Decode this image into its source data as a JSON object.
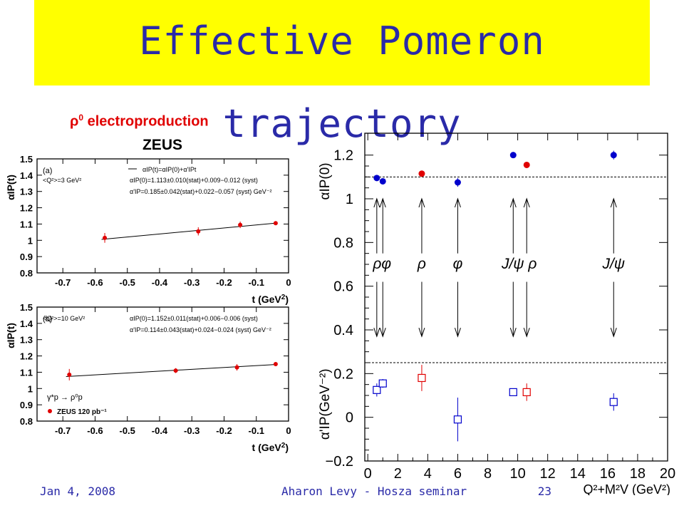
{
  "title": "Effective Pomeron trajectory",
  "subtitle_main": "ρ",
  "subtitle_sup": "0",
  "subtitle_rest": " electroproduction",
  "footer": {
    "date": "Jan 4, 2008",
    "speaker": "Aharon Levy - Hosza seminar",
    "page": "23"
  },
  "chart_data": [
    {
      "type": "scatter",
      "panel": "ZEUS (a)",
      "experiment": "ZEUS",
      "label": "(a)",
      "xlabel_main": "t (GeV",
      "xlabel_sup": "2",
      "xlabel_end": ")",
      "ylabel": "αIP(t)",
      "xlim": [
        -0.78,
        0.0
      ],
      "ylim": [
        0.8,
        1.5
      ],
      "xticks": [
        -0.7,
        -0.6,
        -0.5,
        -0.4,
        -0.3,
        -0.2,
        -0.1,
        0
      ],
      "xtick_labels": [
        "-0.7",
        "-0.6",
        "-0.5",
        "-0.4",
        "-0.3",
        "-0.2",
        "-0.1",
        "0"
      ],
      "yticks": [
        0.8,
        0.9,
        1.0,
        1.1,
        1.2,
        1.3,
        1.4,
        1.5
      ],
      "ytick_labels": [
        "0.8",
        "0.9",
        "1",
        "1.1",
        "1.2",
        "1.3",
        "1.4",
        "1.5"
      ],
      "legend_line": "αIP(t)=αIP(0)+α'IPt",
      "q2_label": "<Q²>=3 GeV²",
      "fit_intercept_label": "αIP(0)=1.113±0.010(stat)+0.009−0.012 (syst)",
      "fit_slope_label": "α'IP=0.185±0.042(stat)+0.022−0.057 (syst) GeV⁻²",
      "points": [
        {
          "t": -0.57,
          "y": 1.015,
          "err": 0.03
        },
        {
          "t": -0.28,
          "y": 1.055,
          "err": 0.025
        },
        {
          "t": -0.15,
          "y": 1.095,
          "err": 0.02
        },
        {
          "t": -0.04,
          "y": 1.105,
          "err": 0.008
        }
      ],
      "fit": {
        "intercept": 1.113,
        "slope": 0.185
      }
    },
    {
      "type": "scatter",
      "panel": "ZEUS (b)",
      "label": "(b)",
      "xlabel_main": "t (GeV",
      "xlabel_sup": "2",
      "xlabel_end": ")",
      "ylabel": "αIP(t)",
      "xlim": [
        -0.78,
        0.0
      ],
      "ylim": [
        0.8,
        1.5
      ],
      "xticks": [
        -0.7,
        -0.6,
        -0.5,
        -0.4,
        -0.3,
        -0.2,
        -0.1,
        0
      ],
      "xtick_labels": [
        "-0.7",
        "-0.6",
        "-0.5",
        "-0.4",
        "-0.3",
        "-0.2",
        "-0.1",
        "0"
      ],
      "yticks": [
        0.8,
        0.9,
        1.0,
        1.1,
        1.2,
        1.3,
        1.4,
        1.5
      ],
      "ytick_labels": [
        "0.8",
        "0.9",
        "1",
        "1.1",
        "1.2",
        "1.3",
        "1.4",
        "1.5"
      ],
      "q2_label": "<Q²>=10 GeV²",
      "fit_intercept_label": "αIP(0)=1.152±0.011(stat)+0.006−0.006 (syst)",
      "fit_slope_label": "α'IP=0.114±0.043(stat)+0.024−0.024 (syst) GeV⁻²",
      "process_label": "γ*p → ρ⁰p",
      "dataset_label": "ZEUS 120 pb⁻¹",
      "points": [
        {
          "t": -0.68,
          "y": 1.085,
          "err": 0.035
        },
        {
          "t": -0.35,
          "y": 1.11,
          "err": 0.015
        },
        {
          "t": -0.16,
          "y": 1.13,
          "err": 0.02
        },
        {
          "t": -0.04,
          "y": 1.15,
          "err": 0.006
        }
      ],
      "fit": {
        "intercept": 1.152,
        "slope": 0.114
      }
    },
    {
      "type": "scatter",
      "panel": "summary",
      "xlabel": "Q²+M²V (GeV²)",
      "ylabel_top": "αIP(0)",
      "ylabel_bottom": "α'IP(GeV⁻²)",
      "xlim": [
        -0.2,
        20
      ],
      "ylim": [
        -0.2,
        1.3
      ],
      "xticks": [
        0,
        2,
        4,
        6,
        8,
        10,
        12,
        14,
        16,
        18,
        20
      ],
      "xtick_labels": [
        "0",
        "2",
        "4",
        "6",
        "8",
        "10",
        "12",
        "14",
        "16",
        "18",
        "20"
      ],
      "yticks": [
        -0.2,
        0,
        0.2,
        0.4,
        0.6,
        0.8,
        1.0,
        1.2
      ],
      "ytick_labels": [
        "−0.2",
        "0",
        "0.2",
        "0.4",
        "0.6",
        "0.8",
        "1",
        "1.2"
      ],
      "ref_lines": [
        1.1,
        0.25
      ],
      "alpha0": [
        {
          "x": 0.6,
          "y": 1.095,
          "err": 0.0,
          "color": "#0000cc"
        },
        {
          "x": 1.0,
          "y": 1.08,
          "err": 0.0,
          "color": "#0000cc"
        },
        {
          "x": 3.6,
          "y": 1.115,
          "err": 0.0,
          "color": "#e00000"
        },
        {
          "x": 6.0,
          "y": 1.075,
          "err": 0.02,
          "color": "#0000cc"
        },
        {
          "x": 9.7,
          "y": 1.2,
          "err": 0.0,
          "color": "#0000cc"
        },
        {
          "x": 10.6,
          "y": 1.155,
          "err": 0.0,
          "color": "#e00000"
        },
        {
          "x": 16.4,
          "y": 1.2,
          "err": 0.02,
          "color": "#0000cc"
        }
      ],
      "alphaprime": [
        {
          "x": 0.6,
          "y": 0.125,
          "err": 0.03,
          "color": "#0000cc"
        },
        {
          "x": 1.0,
          "y": 0.155,
          "err": 0.02,
          "color": "#0000cc"
        },
        {
          "x": 3.6,
          "y": 0.18,
          "err": 0.06,
          "color": "#e00000"
        },
        {
          "x": 6.0,
          "y": -0.01,
          "err": 0.1,
          "color": "#0000cc"
        },
        {
          "x": 9.7,
          "y": 0.115,
          "err": 0.0,
          "color": "#0000cc"
        },
        {
          "x": 10.6,
          "y": 0.115,
          "err": 0.04,
          "color": "#e00000"
        },
        {
          "x": 16.4,
          "y": 0.07,
          "err": 0.04,
          "color": "#0000cc"
        }
      ],
      "arrows_x": [
        0.6,
        1.0,
        3.6,
        6.0,
        9.7,
        10.6,
        16.4
      ],
      "annotations": [
        {
          "x": 0.95,
          "text": "ρφ"
        },
        {
          "x": 3.6,
          "text": "ρ"
        },
        {
          "x": 6.0,
          "text": "φ"
        },
        {
          "x": 10.1,
          "text": "J/ψ ρ"
        },
        {
          "x": 16.4,
          "text": "J/ψ"
        }
      ]
    }
  ]
}
